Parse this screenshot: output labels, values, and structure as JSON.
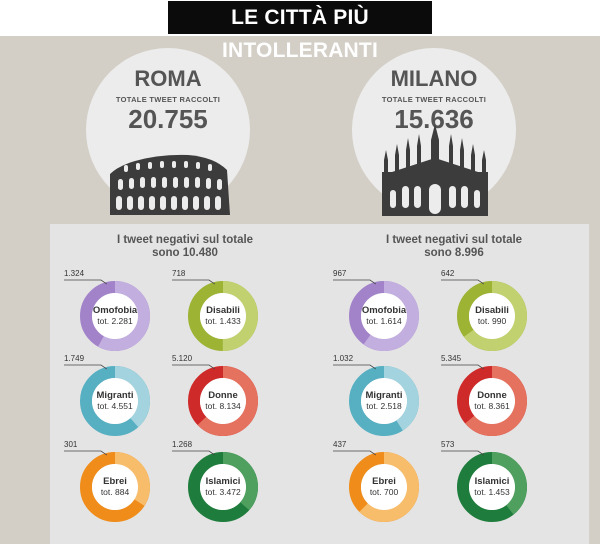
{
  "title": "LE CITTÀ PIÙ INTOLLERANTI",
  "colors": {
    "Omofobia": [
      "#a283c9",
      "#c3aee0"
    ],
    "Disabili": [
      "#9cb334",
      "#c2d170"
    ],
    "Migranti": [
      "#57afc2",
      "#a3d3de"
    ],
    "Donne": [
      "#cf2a2a",
      "#e5725e"
    ],
    "Ebrei": [
      "#ef8c1a",
      "#f7bd6b"
    ],
    "Islamici": [
      "#1e7d3c",
      "#4f9f5f"
    ]
  },
  "cities": [
    {
      "name": "ROMA",
      "subtitle": "TOTALE TWEET RACCOLTI",
      "total": "20.755",
      "panel_title": "I tweet negativi sul totale",
      "panel_total": "sono 10.480"
    },
    {
      "name": "MILANO",
      "subtitle": "TOTALE TWEET RACCOLTI",
      "total": "15.636",
      "panel_title": "I tweet negativi sul totale",
      "panel_total": "sono 8.996"
    }
  ],
  "chart_data": [
    {
      "type": "pie",
      "city": "ROMA",
      "categories": [
        "Omofobia",
        "Disabili",
        "Migranti",
        "Donne",
        "Ebrei",
        "Islamici"
      ],
      "negative": [
        1324,
        718,
        1749,
        5120,
        301,
        1268
      ],
      "negative_labels": [
        "1.324",
        "718",
        "1.749",
        "5.120",
        "301",
        "1.268"
      ],
      "total": [
        2281,
        1433,
        4551,
        8134,
        884,
        3472
      ],
      "total_labels": [
        "tot. 2.281",
        "tot. 1.433",
        "tot. 4.551",
        "tot. 8.134",
        "tot. 884",
        "tot. 3.472"
      ]
    },
    {
      "type": "pie",
      "city": "MILANO",
      "categories": [
        "Omofobia",
        "Disabili",
        "Migranti",
        "Donne",
        "Ebrei",
        "Islamici"
      ],
      "negative": [
        967,
        642,
        1032,
        5345,
        437,
        573
      ],
      "negative_labels": [
        "967",
        "642",
        "1.032",
        "5.345",
        "437",
        "573"
      ],
      "total": [
        1614,
        990,
        2518,
        8361,
        700,
        1453
      ],
      "total_labels": [
        "tot. 1.614",
        "tot. 990",
        "tot. 2.518",
        "tot. 8.361",
        "tot. 700",
        "tot. 1.453"
      ]
    }
  ]
}
